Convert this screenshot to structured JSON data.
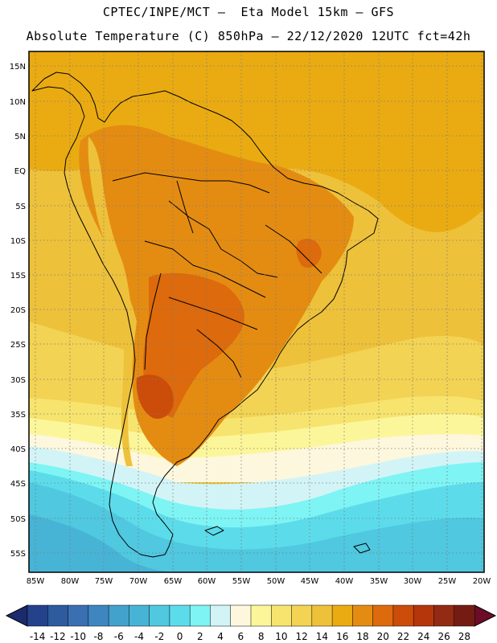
{
  "header": {
    "line1": "CPTEC/INPE/MCT –  Eta Model 15km – GFS",
    "line2": "Absolute Temperature (C) 850hPa – 22/12/2020 12UTC fct=42h"
  },
  "lat_labels": [
    "15N",
    "10N",
    "5N",
    "EQ",
    "5S",
    "10S",
    "15S",
    "20S",
    "25S",
    "30S",
    "35S",
    "40S",
    "45S",
    "50S",
    "55S"
  ],
  "lon_labels": [
    "85W",
    "80W",
    "75W",
    "70W",
    "65W",
    "60W",
    "55W",
    "50W",
    "45W",
    "40W",
    "35W",
    "30W",
    "25W",
    "20W"
  ],
  "colorbar": {
    "labels": [
      "-14",
      "-12",
      "-10",
      "-8",
      "-6",
      "-4",
      "-2",
      "0",
      "2",
      "4",
      "6",
      "8",
      "10",
      "12",
      "14",
      "16",
      "18",
      "20",
      "22",
      "24",
      "26",
      "28"
    ],
    "colors": [
      "#24428c",
      "#2e5a9e",
      "#3a70b2",
      "#3f86c0",
      "#43a2cb",
      "#47b4d6",
      "#4fc8e0",
      "#5cdcea",
      "#7ef4f4",
      "#d2f4f6",
      "#fdf7dd",
      "#fcf69a",
      "#f7e46e",
      "#f3d353",
      "#eec13b",
      "#eaab12",
      "#e48c12",
      "#dd6a0c",
      "#cc4c0a",
      "#b6360c",
      "#932a14",
      "#741c14"
    ],
    "left_cap_color": "#1c2a6e",
    "right_cap_color": "#6c0c28"
  }
}
